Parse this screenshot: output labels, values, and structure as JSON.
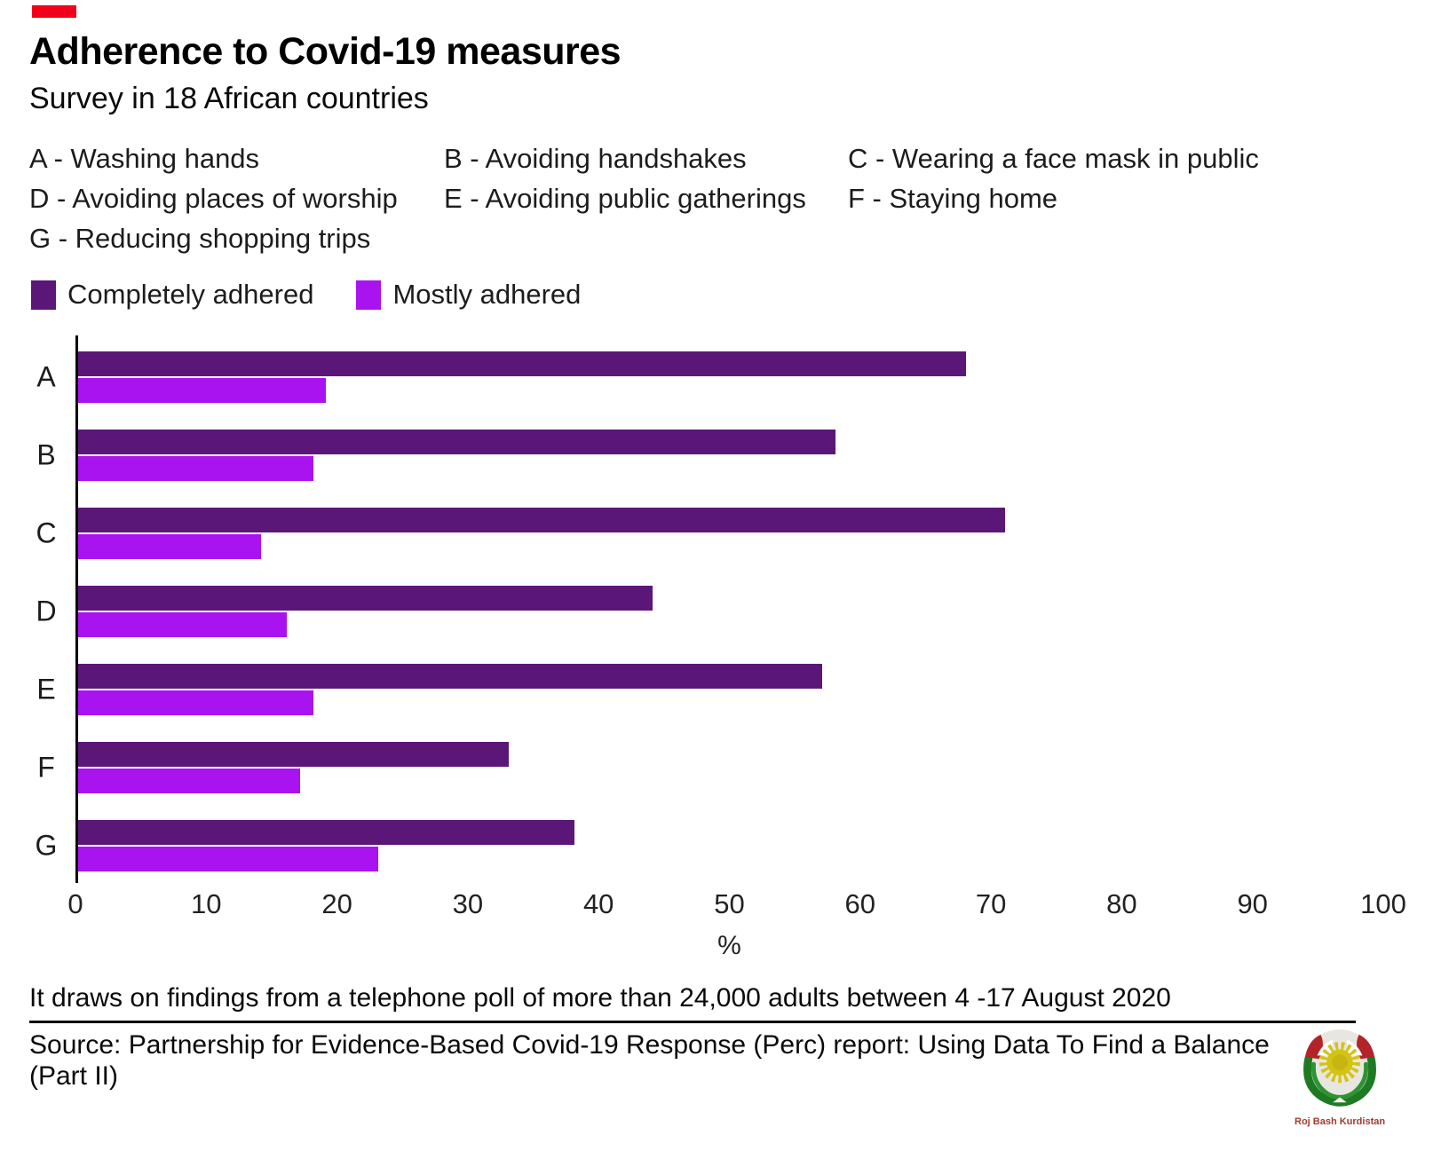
{
  "header": {
    "title": "Adherence to Covid-19 measures",
    "subtitle": "Survey in 18 African countries"
  },
  "key": {
    "items": [
      "A - Washing hands",
      "B - Avoiding handshakes",
      "C - Wearing a face mask in public",
      "D - Avoiding places of worship",
      "E - Avoiding public gatherings",
      "F - Staying home",
      "G - Reducing shopping trips"
    ]
  },
  "legend": [
    {
      "label": "Completely adhered",
      "color": "#5b1778"
    },
    {
      "label": "Mostly adhered",
      "color": "#a913ef"
    }
  ],
  "chart_data": {
    "type": "bar",
    "orientation": "horizontal",
    "categories": [
      "A",
      "B",
      "C",
      "D",
      "E",
      "F",
      "G"
    ],
    "series": [
      {
        "name": "Completely adhered",
        "color": "#5b1778",
        "values": [
          68,
          58,
          71,
          44,
          57,
          33,
          38
        ]
      },
      {
        "name": "Mostly adhered",
        "color": "#a913ef",
        "values": [
          19,
          18,
          14,
          16,
          18,
          17,
          23
        ]
      }
    ],
    "xlabel": "%",
    "xlim": [
      0,
      100
    ],
    "xticks": [
      0,
      10,
      20,
      30,
      40,
      50,
      60,
      70,
      80,
      90,
      100
    ],
    "grid": false,
    "legend_position": "top-left"
  },
  "footer": {
    "note": "It draws on findings from a telephone poll of more than 24,000 adults between 4 -17 August 2020",
    "source": "Source: Partnership for Evidence-Based Covid-19 Response (Perc) report: Using Data To Find a Balance (Part II)"
  },
  "watermark": {
    "text": "Roj Bash Kurdistan"
  }
}
